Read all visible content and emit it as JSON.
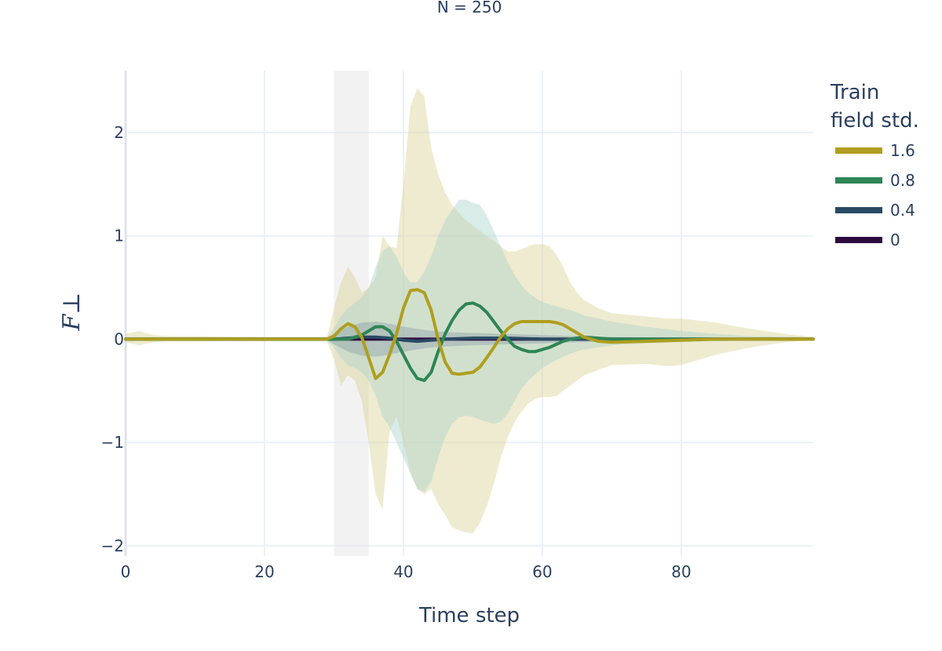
{
  "chart_data": {
    "type": "line",
    "subtitle": "N = 250",
    "xlabel": "Time step",
    "ylabel": "F⊥",
    "xlim": [
      0,
      99
    ],
    "ylim": [
      -2.1,
      2.6
    ],
    "x_ticks": [
      0,
      20,
      40,
      60,
      80
    ],
    "y_ticks": [
      -2,
      -1,
      0,
      1,
      2
    ],
    "y_tick_labels": [
      "−2",
      "−1",
      "0",
      "1",
      "2"
    ],
    "grid": true,
    "shaded_region": {
      "x": [
        30,
        35
      ],
      "color": "#e6e6e6"
    },
    "legend": {
      "title": [
        "Train",
        "field std."
      ],
      "position": "right"
    },
    "series": [
      {
        "name": "1.6",
        "color": "#b09e1e",
        "band_color": "#d9cf8f",
        "x": [
          0,
          5,
          10,
          20,
          29,
          30,
          31,
          32,
          33,
          34,
          35,
          36,
          37,
          38,
          39,
          40,
          41,
          42,
          43,
          44,
          45,
          46,
          47,
          48,
          49,
          50,
          51,
          52,
          53,
          54,
          55,
          56,
          57,
          58,
          59,
          60,
          61,
          62,
          63,
          64,
          65,
          66,
          68,
          70,
          75,
          80,
          85,
          90,
          99
        ],
        "values": [
          0,
          0,
          0,
          0,
          0,
          0.03,
          0.1,
          0.15,
          0.12,
          0.02,
          -0.18,
          -0.38,
          -0.32,
          -0.15,
          0.05,
          0.3,
          0.47,
          0.48,
          0.45,
          0.28,
          0.0,
          -0.22,
          -0.33,
          -0.34,
          -0.33,
          -0.32,
          -0.27,
          -0.18,
          -0.08,
          0.02,
          0.1,
          0.15,
          0.17,
          0.17,
          0.17,
          0.17,
          0.17,
          0.16,
          0.14,
          0.1,
          0.06,
          0.02,
          -0.02,
          -0.03,
          -0.02,
          -0.01,
          0,
          0,
          0
        ],
        "band_x": [
          0,
          2,
          4,
          6,
          10,
          20,
          29,
          30,
          31,
          32,
          33,
          34,
          35,
          36,
          37,
          38,
          39,
          40,
          41,
          42,
          43,
          44,
          45,
          46,
          47,
          48,
          49,
          50,
          51,
          52,
          53,
          54,
          55,
          56,
          57,
          58,
          59,
          60,
          61,
          62,
          63,
          64,
          65,
          66,
          68,
          70,
          75,
          78,
          80,
          85,
          90,
          95,
          99
        ],
        "band_upper": [
          0.05,
          0.08,
          0.04,
          0.03,
          0.03,
          0.02,
          0.02,
          0.3,
          0.55,
          0.7,
          0.6,
          0.45,
          0.5,
          0.6,
          1.0,
          0.9,
          0.88,
          1.5,
          2.25,
          2.43,
          2.35,
          1.85,
          1.6,
          1.42,
          1.3,
          1.22,
          1.15,
          1.1,
          1.05,
          1.0,
          0.95,
          0.9,
          0.85,
          0.85,
          0.87,
          0.9,
          0.92,
          0.92,
          0.9,
          0.82,
          0.7,
          0.55,
          0.45,
          0.38,
          0.3,
          0.25,
          0.22,
          0.2,
          0.2,
          0.16,
          0.1,
          0.05,
          0.02
        ],
        "band_lower": [
          -0.03,
          -0.06,
          -0.03,
          -0.02,
          -0.02,
          -0.02,
          -0.02,
          -0.2,
          -0.45,
          -0.35,
          -0.4,
          -0.6,
          -1.0,
          -1.5,
          -1.65,
          -0.9,
          -0.75,
          -1.0,
          -1.3,
          -1.45,
          -1.5,
          -1.45,
          -1.6,
          -1.7,
          -1.82,
          -1.85,
          -1.87,
          -1.88,
          -1.78,
          -1.62,
          -1.4,
          -1.15,
          -0.95,
          -0.8,
          -0.7,
          -0.62,
          -0.58,
          -0.56,
          -0.56,
          -0.55,
          -0.5,
          -0.45,
          -0.4,
          -0.35,
          -0.3,
          -0.25,
          -0.24,
          -0.26,
          -0.25,
          -0.15,
          -0.08,
          -0.03,
          -0.01
        ]
      },
      {
        "name": "0.8",
        "color": "#2e8555",
        "band_color": "#a6d2c7",
        "x": [
          0,
          10,
          20,
          30,
          31,
          32,
          33,
          34,
          35,
          36,
          37,
          38,
          39,
          40,
          41,
          42,
          43,
          44,
          45,
          46,
          47,
          48,
          49,
          50,
          51,
          52,
          53,
          54,
          55,
          56,
          57,
          58,
          59,
          60,
          61,
          62,
          63,
          64,
          65,
          66,
          68,
          70,
          80,
          90,
          99
        ],
        "values": [
          0,
          0,
          0,
          0,
          0,
          0.0,
          0.02,
          0.04,
          0.08,
          0.12,
          0.12,
          0.08,
          -0.02,
          -0.15,
          -0.28,
          -0.38,
          -0.4,
          -0.32,
          -0.12,
          0.05,
          0.18,
          0.28,
          0.34,
          0.35,
          0.32,
          0.26,
          0.17,
          0.08,
          0.0,
          -0.07,
          -0.1,
          -0.12,
          -0.12,
          -0.1,
          -0.08,
          -0.05,
          -0.02,
          0.0,
          0.01,
          0.02,
          0.01,
          0.0,
          0,
          0,
          0
        ],
        "band_x": [
          0,
          20,
          29,
          30,
          31,
          32,
          33,
          34,
          35,
          36,
          37,
          38,
          39,
          40,
          41,
          42,
          43,
          44,
          45,
          46,
          47,
          48,
          49,
          50,
          51,
          52,
          53,
          54,
          55,
          56,
          57,
          58,
          59,
          60,
          61,
          62,
          63,
          64,
          65,
          66,
          68,
          70,
          75,
          80,
          85,
          90,
          99
        ],
        "band_upper": [
          0.02,
          0.02,
          0.02,
          0.1,
          0.22,
          0.3,
          0.35,
          0.4,
          0.5,
          0.7,
          0.85,
          0.9,
          0.8,
          0.65,
          0.55,
          0.55,
          0.65,
          0.8,
          1.0,
          1.15,
          1.25,
          1.35,
          1.35,
          1.32,
          1.3,
          1.2,
          1.05,
          0.9,
          0.75,
          0.62,
          0.52,
          0.45,
          0.4,
          0.36,
          0.34,
          0.32,
          0.3,
          0.28,
          0.26,
          0.23,
          0.2,
          0.17,
          0.12,
          0.08,
          0.05,
          0.03,
          0.02
        ],
        "band_lower": [
          -0.02,
          -0.02,
          -0.02,
          -0.08,
          -0.18,
          -0.25,
          -0.28,
          -0.32,
          -0.4,
          -0.55,
          -0.75,
          -0.85,
          -1.0,
          -1.15,
          -1.3,
          -1.45,
          -1.48,
          -1.38,
          -1.15,
          -0.95,
          -0.82,
          -0.76,
          -0.74,
          -0.75,
          -0.78,
          -0.8,
          -0.82,
          -0.8,
          -0.72,
          -0.6,
          -0.48,
          -0.4,
          -0.34,
          -0.28,
          -0.24,
          -0.2,
          -0.17,
          -0.14,
          -0.12,
          -0.1,
          -0.08,
          -0.06,
          -0.04,
          -0.03,
          -0.02,
          -0.01,
          -0.01
        ]
      },
      {
        "name": "0.4",
        "color": "#2a4a64",
        "band_color": "#8a9ca8",
        "x": [
          0,
          30,
          32,
          34,
          36,
          38,
          40,
          42,
          44,
          46,
          50,
          55,
          60,
          70,
          99
        ],
        "values": [
          0,
          0,
          0.01,
          0.02,
          0.02,
          0.01,
          -0.01,
          -0.02,
          -0.01,
          0.0,
          0.01,
          0.01,
          0.0,
          0.0,
          0
        ],
        "band_x": [
          0,
          29,
          30,
          32,
          34,
          36,
          38,
          40,
          42,
          44,
          46,
          50,
          55,
          60,
          65,
          70,
          80,
          99
        ],
        "band_upper": [
          0.01,
          0.01,
          0.05,
          0.12,
          0.16,
          0.17,
          0.15,
          0.12,
          0.1,
          0.08,
          0.07,
          0.06,
          0.05,
          0.04,
          0.03,
          0.02,
          0.01,
          0.0
        ],
        "band_lower": [
          -0.01,
          -0.01,
          -0.05,
          -0.12,
          -0.16,
          -0.17,
          -0.15,
          -0.12,
          -0.1,
          -0.08,
          -0.07,
          -0.06,
          -0.05,
          -0.04,
          -0.03,
          -0.02,
          -0.01,
          0.0
        ]
      },
      {
        "name": "0",
        "color": "#2d0a3d",
        "x": [
          0,
          99
        ],
        "values": [
          0,
          0
        ]
      }
    ]
  }
}
